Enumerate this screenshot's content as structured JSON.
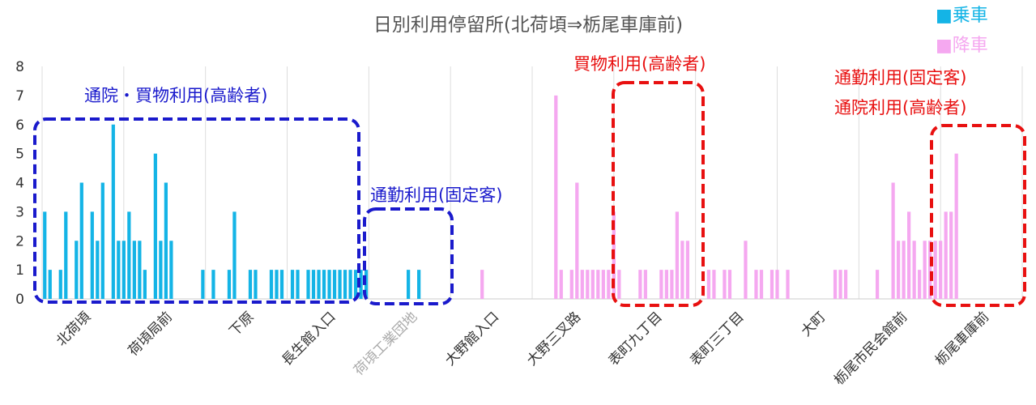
{
  "chart_data": {
    "type": "bar",
    "title": "日別利用停留所(北荷頃⇒栃尾車庫前)",
    "ylim": [
      0,
      8
    ],
    "yticks": [
      "0",
      "1",
      "2",
      "3",
      "4",
      "5",
      "6",
      "7",
      "8"
    ],
    "grid": "vertical",
    "legend_position": "top-right",
    "x_labels": [
      "北荷頃",
      "荷頃局前",
      "下原",
      "長生館入口",
      "荷頃工業団地",
      "大野館入口",
      "大野三叉路",
      "表町九丁目",
      "表町三丁目",
      "大町",
      "栃尾市民会館前",
      "栃尾車庫前"
    ],
    "series": [
      {
        "name": "乗車",
        "color": "#14b4e6",
        "values": [
          3,
          1,
          0,
          1,
          3,
          0,
          2,
          4,
          0,
          3,
          2,
          4,
          0,
          6,
          2,
          2,
          3,
          2,
          2,
          1,
          0,
          5,
          2,
          4,
          2,
          0,
          0,
          0,
          0,
          0,
          1,
          0,
          1,
          0,
          0,
          1,
          3,
          0,
          0,
          1,
          1,
          0,
          0,
          1,
          1,
          1,
          0,
          1,
          1,
          0,
          1,
          1,
          1,
          1,
          1,
          1,
          1,
          1,
          1,
          1,
          1,
          1,
          0,
          0,
          0,
          0,
          0,
          0,
          0,
          1,
          0,
          1,
          0,
          0,
          0,
          0,
          0,
          0,
          0,
          0,
          0,
          0,
          0,
          0,
          0,
          0,
          0,
          0,
          0,
          0,
          0,
          0,
          0,
          0,
          0,
          0,
          0,
          0,
          0,
          0,
          0,
          0,
          0,
          0,
          0,
          0,
          0,
          0,
          0,
          0,
          0,
          0,
          0,
          0,
          0,
          0,
          0,
          0,
          0,
          0,
          0,
          0,
          0,
          0,
          0,
          0,
          0,
          0,
          0,
          0,
          0,
          0,
          0,
          0,
          0,
          0,
          0,
          0,
          0,
          0,
          0,
          0,
          0,
          0,
          0,
          0,
          0,
          0,
          0,
          0,
          0,
          0,
          0,
          0,
          0,
          0,
          0,
          0,
          0,
          0,
          0,
          0,
          0,
          0,
          0,
          0,
          0,
          0,
          0,
          0,
          0,
          0,
          0,
          0,
          0,
          0,
          0,
          0,
          0,
          0,
          0,
          0,
          0,
          0,
          0,
          0
        ]
      },
      {
        "name": "降車",
        "color": "#f5a8f0",
        "values": [
          0,
          0,
          0,
          0,
          0,
          0,
          0,
          0,
          0,
          0,
          0,
          0,
          0,
          0,
          0,
          0,
          0,
          0,
          0,
          0,
          0,
          0,
          0,
          0,
          0,
          0,
          0,
          0,
          0,
          0,
          0,
          0,
          0,
          0,
          0,
          0,
          0,
          0,
          0,
          0,
          0,
          0,
          0,
          0,
          0,
          0,
          0,
          0,
          0,
          0,
          0,
          0,
          0,
          0,
          0,
          0,
          0,
          0,
          0,
          0,
          0,
          0,
          0,
          0,
          0,
          0,
          0,
          0,
          0,
          0,
          0,
          0,
          0,
          0,
          0,
          0,
          0,
          0,
          0,
          0,
          0,
          0,
          0,
          1,
          0,
          0,
          0,
          0,
          0,
          0,
          0,
          0,
          0,
          0,
          0,
          0,
          0,
          7,
          1,
          0,
          1,
          4,
          1,
          1,
          1,
          1,
          1,
          1,
          3,
          1,
          0,
          0,
          0,
          1,
          1,
          0,
          0,
          1,
          1,
          1,
          3,
          2,
          2,
          0,
          0,
          0,
          1,
          1,
          0,
          1,
          1,
          0,
          0,
          2,
          0,
          1,
          1,
          0,
          1,
          1,
          0,
          1,
          0,
          0,
          0,
          0,
          0,
          0,
          0,
          0,
          1,
          1,
          1,
          0,
          0,
          0,
          0,
          0,
          1,
          0,
          0,
          4,
          2,
          2,
          3,
          2,
          1,
          2,
          2,
          2,
          2,
          3,
          3,
          5,
          0,
          0,
          0,
          0,
          0,
          0,
          0,
          0,
          0,
          0
        ]
      }
    ],
    "annotations": [
      {
        "text": "通院・買物利用(高齢者)",
        "color": "#1a1acc"
      },
      {
        "text": "通勤利用(固定客)",
        "color": "#1a1acc"
      },
      {
        "text": "買物利用(高齢者)",
        "color": "#e81010"
      },
      {
        "text": "通勤利用(固定客)",
        "color": "#e81010"
      },
      {
        "text": "通院利用(高齢者)",
        "color": "#e81010"
      }
    ]
  },
  "legend": {
    "board_label": "■乗車",
    "alight_label": "■降車"
  },
  "colors": {
    "board": "#14b4e6",
    "alight": "#f5a8f0",
    "blue_box": "#1a1acc",
    "red_box": "#e81010",
    "grid": "#dddddd",
    "axis_text": "#333333"
  }
}
